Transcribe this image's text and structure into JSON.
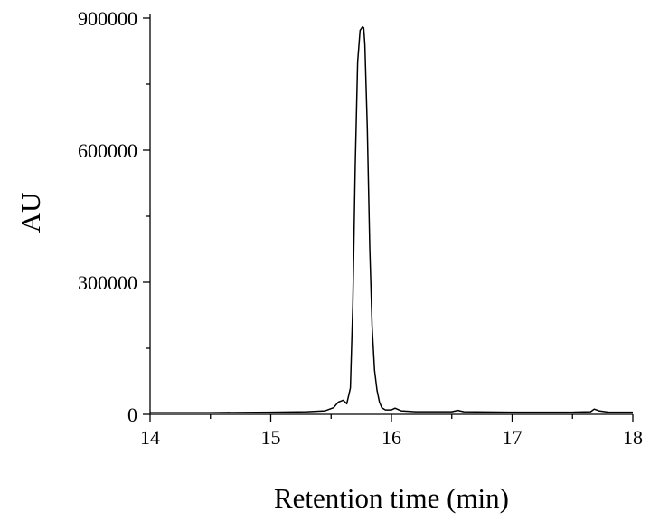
{
  "chart_data": {
    "type": "line",
    "title": "",
    "xlabel": "Retention time (min)",
    "ylabel": "AU",
    "xlim": [
      14,
      18
    ],
    "ylim": [
      0,
      900000
    ],
    "x_ticks": [
      14,
      15,
      16,
      17,
      18
    ],
    "x_tick_labels": [
      "14",
      "15",
      "16",
      "17",
      "18"
    ],
    "y_ticks": [
      0,
      300000,
      600000,
      900000
    ],
    "y_tick_labels": [
      "0",
      "300000",
      "600000",
      "900000"
    ],
    "grid": false,
    "legend": "none",
    "series": [
      {
        "color": "#000000",
        "x": [
          14.0,
          14.5,
          15.0,
          15.3,
          15.45,
          15.52,
          15.56,
          15.6,
          15.63,
          15.66,
          15.68,
          15.7,
          15.72,
          15.74,
          15.76,
          15.77,
          15.78,
          15.8,
          15.82,
          15.84,
          15.86,
          15.88,
          15.9,
          15.92,
          15.95,
          16.0,
          16.03,
          16.08,
          16.2,
          16.5,
          16.55,
          16.6,
          17.0,
          17.5,
          17.65,
          17.68,
          17.72,
          17.8,
          18.0
        ],
        "y": [
          4000,
          4000,
          5000,
          6000,
          8000,
          15000,
          28000,
          32000,
          24000,
          60000,
          250000,
          560000,
          800000,
          872000,
          880000,
          878000,
          840000,
          650000,
          380000,
          200000,
          100000,
          55000,
          28000,
          15000,
          10000,
          10000,
          14000,
          8000,
          6000,
          6000,
          9000,
          6000,
          5000,
          5000,
          6000,
          12000,
          8000,
          5000,
          5000
        ]
      }
    ]
  }
}
